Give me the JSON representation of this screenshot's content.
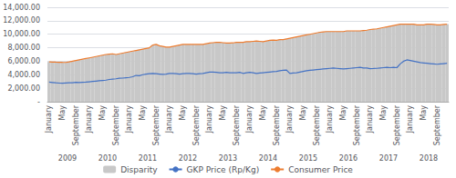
{
  "chart_data": {
    "type": "bar",
    "categories": [
      "January",
      null,
      null,
      null,
      "May",
      null,
      null,
      null,
      "September",
      null,
      null,
      null,
      "January",
      null,
      null,
      null,
      "May",
      null,
      null,
      null,
      "September",
      null,
      null,
      null,
      "January",
      null,
      null,
      null,
      "May",
      null,
      null,
      null,
      "September",
      null,
      null,
      null,
      "January",
      null,
      null,
      null,
      "May",
      null,
      null,
      null,
      "September",
      null,
      null,
      null,
      "January",
      null,
      null,
      null,
      "May",
      null,
      null,
      null,
      "September",
      null,
      null,
      null,
      "January",
      null,
      null,
      null,
      "May",
      null,
      null,
      null,
      "September",
      null,
      null,
      null,
      "January",
      null,
      null,
      null,
      "May",
      null,
      null,
      null,
      "September",
      null,
      null,
      null,
      "January",
      null,
      null,
      null,
      "May",
      null,
      null,
      null,
      "September",
      null,
      null,
      null,
      "January",
      null,
      null,
      null,
      "May",
      null,
      null,
      null,
      "September",
      null,
      null,
      null,
      "January",
      null,
      null,
      null,
      "May",
      null,
      null,
      null,
      "September",
      null,
      null,
      null
    ],
    "annotations": [
      "2009",
      "2010",
      "2011",
      "2012",
      "2013",
      "2014",
      "2015",
      "2016",
      "2017",
      "2018"
    ],
    "series": [
      {
        "name": "Disparity",
        "type": "bar",
        "color": "#c8c8c8",
        "values": [
          5900,
          5880,
          5860,
          5850,
          5830,
          5820,
          5900,
          6000,
          6100,
          6200,
          6300,
          6400,
          6500,
          6600,
          6700,
          6800,
          6900,
          7000,
          7050,
          7100,
          7000,
          7100,
          7200,
          7300,
          7400,
          7500,
          7600,
          7700,
          7800,
          7900,
          8000,
          8400,
          8500,
          8300,
          8200,
          8100,
          8100,
          8200,
          8300,
          8400,
          8500,
          8500,
          8500,
          8500,
          8500,
          8500,
          8500,
          8600,
          8700,
          8750,
          8800,
          8800,
          8750,
          8700,
          8700,
          8720,
          8800,
          8800,
          8800,
          8900,
          8900,
          8950,
          9000,
          8950,
          8900,
          9000,
          9100,
          9150,
          9100,
          9200,
          9200,
          9300,
          9400,
          9500,
          9600,
          9700,
          9800,
          9900,
          10000,
          10100,
          10200,
          10300,
          10350,
          10400,
          10400,
          10400,
          10400,
          10400,
          10400,
          10500,
          10500,
          10500,
          10500,
          10500,
          10550,
          10600,
          10700,
          10750,
          10800,
          10900,
          11000,
          11100,
          11200,
          11300,
          11400,
          11500,
          11500,
          11500,
          11500,
          11500,
          11400,
          11400,
          11400,
          11500,
          11500,
          11450,
          11400,
          11400,
          11450,
          11500
        ]
      },
      {
        "name": "GKP Price (Rp/Kg)",
        "type": "line",
        "color": "#4472c4",
        "values": [
          2900,
          2850,
          2800,
          2760,
          2750,
          2780,
          2800,
          2820,
          2870,
          2850,
          2880,
          2900,
          2950,
          3000,
          3050,
          3100,
          3150,
          3200,
          3300,
          3350,
          3400,
          3480,
          3500,
          3550,
          3600,
          3700,
          3900,
          3850,
          4000,
          4100,
          4150,
          4200,
          4150,
          4100,
          4050,
          4100,
          4200,
          4200,
          4150,
          4100,
          4150,
          4200,
          4200,
          4150,
          4100,
          4150,
          4200,
          4300,
          4400,
          4380,
          4350,
          4300,
          4300,
          4350,
          4300,
          4280,
          4300,
          4350,
          4200,
          4300,
          4350,
          4300,
          4200,
          4250,
          4300,
          4350,
          4400,
          4450,
          4500,
          4600,
          4650,
          4700,
          4200,
          4250,
          4300,
          4400,
          4500,
          4600,
          4650,
          4700,
          4750,
          4800,
          4850,
          4900,
          4950,
          5000,
          4950,
          4900,
          4850,
          4900,
          4950,
          5000,
          5050,
          5100,
          5000,
          5000,
          4900,
          4920,
          4950,
          5000,
          5050,
          5100,
          5050,
          5100,
          5050,
          5600,
          6000,
          6200,
          6100,
          6000,
          5900,
          5800,
          5750,
          5700,
          5650,
          5600,
          5550,
          5600,
          5650,
          5700
        ]
      },
      {
        "name": "Consumer Price",
        "type": "line",
        "color": "#ed7d31",
        "values": [
          5900,
          5880,
          5860,
          5850,
          5830,
          5820,
          5900,
          6000,
          6100,
          6200,
          6300,
          6400,
          6500,
          6600,
          6700,
          6800,
          6900,
          7000,
          7050,
          7100,
          7000,
          7100,
          7200,
          7300,
          7400,
          7500,
          7600,
          7700,
          7800,
          7900,
          8000,
          8400,
          8500,
          8300,
          8200,
          8100,
          8100,
          8200,
          8300,
          8400,
          8500,
          8500,
          8500,
          8500,
          8500,
          8500,
          8500,
          8600,
          8700,
          8750,
          8800,
          8800,
          8750,
          8700,
          8700,
          8720,
          8800,
          8800,
          8800,
          8900,
          8900,
          8950,
          9000,
          8950,
          8900,
          9000,
          9100,
          9150,
          9100,
          9200,
          9200,
          9300,
          9400,
          9500,
          9600,
          9700,
          9800,
          9900,
          10000,
          10100,
          10200,
          10300,
          10350,
          10400,
          10400,
          10400,
          10400,
          10400,
          10400,
          10500,
          10500,
          10500,
          10500,
          10500,
          10550,
          10600,
          10700,
          10750,
          10800,
          10900,
          11000,
          11100,
          11200,
          11300,
          11400,
          11500,
          11500,
          11500,
          11500,
          11500,
          11400,
          11400,
          11400,
          11500,
          11500,
          11450,
          11400,
          11400,
          11450,
          11500
        ]
      }
    ],
    "ylim": [
      0,
      14000
    ],
    "yticks": [
      {
        "value": 0,
        "label": "-"
      },
      {
        "value": 2000,
        "label": "2,000.00"
      },
      {
        "value": 4000,
        "label": "4,000.00"
      },
      {
        "value": 6000,
        "label": "6,000.00"
      },
      {
        "value": 8000,
        "label": "8,000.00"
      },
      {
        "value": 10000,
        "label": "10,000.00"
      },
      {
        "value": 12000,
        "label": "12,000.00"
      },
      {
        "value": 14000,
        "label": "14,000.00"
      }
    ],
    "grid": true,
    "legend": "bottom"
  }
}
